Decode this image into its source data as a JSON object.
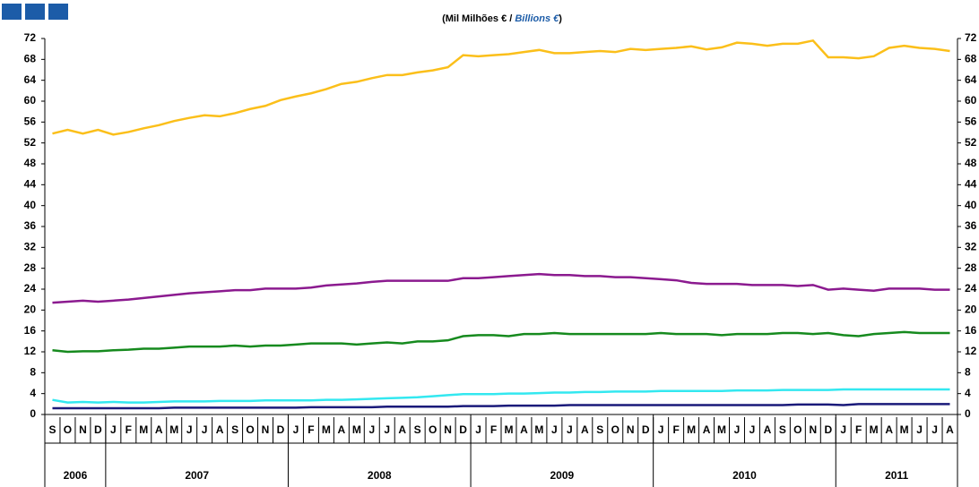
{
  "chart_data": {
    "type": "line",
    "subtitle": [
      "(Mil Milhões € / ",
      "Billions €",
      ")"
    ],
    "categories": [
      "S",
      "O",
      "N",
      "D",
      "J",
      "F",
      "M",
      "A",
      "M",
      "J",
      "J",
      "A",
      "S",
      "O",
      "N",
      "D",
      "J",
      "F",
      "M",
      "A",
      "M",
      "J",
      "J",
      "A",
      "S",
      "O",
      "N",
      "D",
      "J",
      "F",
      "M",
      "A",
      "M",
      "J",
      "J",
      "A",
      "S",
      "O",
      "N",
      "D",
      "J",
      "F",
      "M",
      "A",
      "M",
      "J",
      "J",
      "A",
      "S",
      "O",
      "N",
      "D",
      "J",
      "F",
      "M",
      "A",
      "M",
      "J",
      "J",
      "A"
    ],
    "years": [
      "2006",
      "2007",
      "2008",
      "2009",
      "2010",
      "2011"
    ],
    "ylim": [
      0,
      72
    ],
    "yticks": [
      0,
      4,
      8,
      12,
      16,
      20,
      24,
      28,
      32,
      36,
      40,
      44,
      48,
      52,
      56,
      60,
      64,
      68,
      72
    ],
    "series": [
      {
        "color": "#fbbf1a",
        "values": [
          53.8,
          54.5,
          53.8,
          54.5,
          53.6,
          54.1,
          54.8,
          55.4,
          56.2,
          56.8,
          57.3,
          57.1,
          57.7,
          58.5,
          59.1,
          60.2,
          60.9,
          61.5,
          62.3,
          63.3,
          63.7,
          64.4,
          65,
          65,
          65.5,
          65.9,
          66.5,
          68.8,
          68.6,
          68.8,
          69,
          69.4,
          69.8,
          69.2,
          69.2,
          69.4,
          69.6,
          69.4,
          70,
          69.8,
          70,
          70.2,
          70.5,
          69.9,
          70.3,
          71.2,
          71,
          70.6,
          71,
          71,
          71.6,
          68.4,
          68.4,
          68.2,
          68.6,
          70.2,
          70.6,
          70.2,
          70,
          69.6
        ]
      },
      {
        "color": "#8b1a8f",
        "values": [
          21.4,
          21.6,
          21.8,
          21.6,
          21.8,
          22,
          22.3,
          22.6,
          22.9,
          23.2,
          23.4,
          23.6,
          23.8,
          23.8,
          24.1,
          24.1,
          24.1,
          24.3,
          24.7,
          24.9,
          25.1,
          25.4,
          25.6,
          25.6,
          25.6,
          25.6,
          25.6,
          26.1,
          26.1,
          26.3,
          26.5,
          26.7,
          26.9,
          26.7,
          26.7,
          26.5,
          26.5,
          26.3,
          26.3,
          26.1,
          25.9,
          25.7,
          25.2,
          25,
          25,
          25,
          24.8,
          24.8,
          24.8,
          24.6,
          24.8,
          23.9,
          24.1,
          23.9,
          23.7,
          24.1,
          24.1,
          24.1,
          23.9,
          23.9
        ]
      },
      {
        "color": "#168a1e",
        "values": [
          12.3,
          12,
          12.1,
          12.1,
          12.3,
          12.4,
          12.6,
          12.6,
          12.8,
          13,
          13,
          13,
          13.2,
          13,
          13.2,
          13.2,
          13.4,
          13.6,
          13.6,
          13.6,
          13.4,
          13.6,
          13.8,
          13.6,
          14,
          14,
          14.2,
          15,
          15.2,
          15.2,
          15,
          15.4,
          15.4,
          15.6,
          15.4,
          15.4,
          15.4,
          15.4,
          15.4,
          15.4,
          15.6,
          15.4,
          15.4,
          15.4,
          15.2,
          15.4,
          15.4,
          15.4,
          15.6,
          15.6,
          15.4,
          15.6,
          15.2,
          15,
          15.4,
          15.6,
          15.8,
          15.6,
          15.6,
          15.6
        ]
      },
      {
        "color": "#33e8f0",
        "values": [
          2.8,
          2.3,
          2.4,
          2.3,
          2.4,
          2.3,
          2.3,
          2.4,
          2.5,
          2.5,
          2.5,
          2.6,
          2.6,
          2.6,
          2.7,
          2.7,
          2.7,
          2.7,
          2.8,
          2.8,
          2.9,
          3,
          3.1,
          3.2,
          3.3,
          3.5,
          3.7,
          3.9,
          3.9,
          3.9,
          4,
          4,
          4.1,
          4.2,
          4.2,
          4.3,
          4.3,
          4.4,
          4.4,
          4.4,
          4.5,
          4.5,
          4.5,
          4.5,
          4.5,
          4.6,
          4.6,
          4.6,
          4.7,
          4.7,
          4.7,
          4.7,
          4.8,
          4.8,
          4.8,
          4.8,
          4.8,
          4.8,
          4.8,
          4.8
        ]
      },
      {
        "color": "#1a1a7a",
        "values": [
          1.2,
          1.2,
          1.2,
          1.2,
          1.2,
          1.2,
          1.2,
          1.2,
          1.3,
          1.3,
          1.3,
          1.3,
          1.3,
          1.3,
          1.3,
          1.3,
          1.3,
          1.4,
          1.4,
          1.4,
          1.4,
          1.4,
          1.5,
          1.5,
          1.5,
          1.5,
          1.5,
          1.6,
          1.6,
          1.6,
          1.7,
          1.7,
          1.7,
          1.7,
          1.8,
          1.8,
          1.8,
          1.8,
          1.8,
          1.8,
          1.8,
          1.8,
          1.8,
          1.8,
          1.8,
          1.8,
          1.8,
          1.8,
          1.8,
          1.9,
          1.9,
          1.9,
          1.8,
          2,
          2,
          2,
          2,
          2,
          2,
          2
        ]
      }
    ]
  }
}
